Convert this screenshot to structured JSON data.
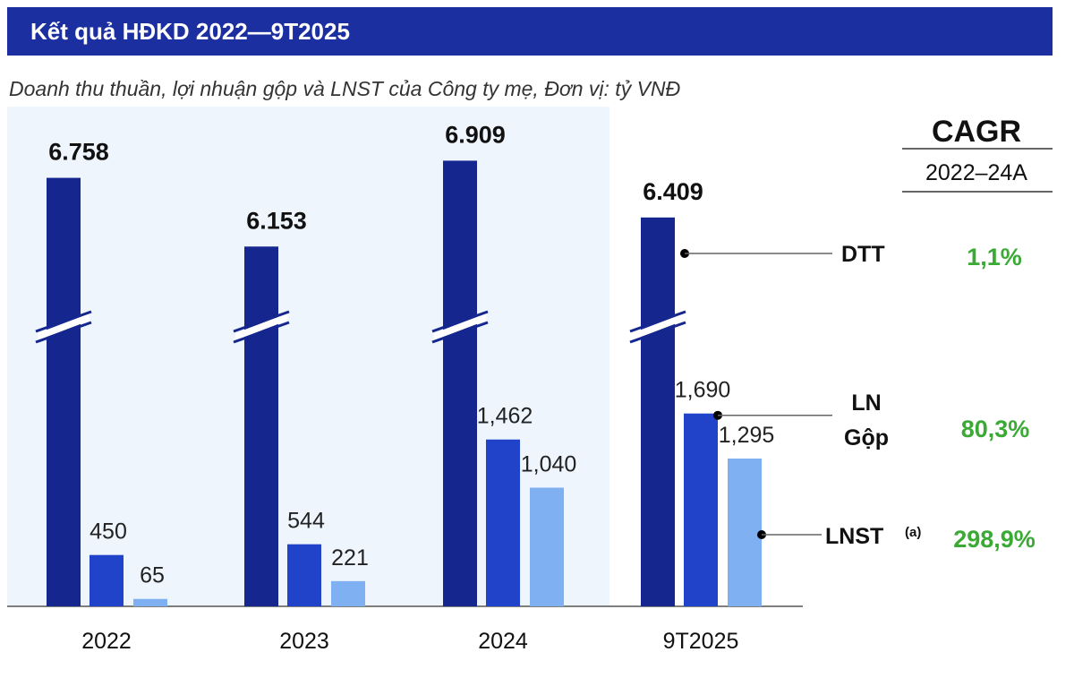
{
  "header": {
    "title": "Kết quả HĐKD 2022—9T2025"
  },
  "subtitle": "Doanh thu thuần, lợi nhuận gộp và LNST của Công ty mẹ, Đơn vị: tỷ VNĐ",
  "colors": {
    "banner": "#1b2fa0",
    "dtt": "#15278f",
    "ln_gop": "#2143c9",
    "lnst": "#7fb0f2",
    "highlight_bg": "#eef5fd",
    "cagr_green": "#3aaa35"
  },
  "chart_data": {
    "type": "bar",
    "title": "Kết quả HĐKD 2022—9T2025",
    "subtitle": "Doanh thu thuần, lợi nhuận gộp và LNST của Công ty mẹ, Đơn vị: tỷ VNĐ",
    "categories": [
      "2022",
      "2023",
      "2024",
      "9T2025"
    ],
    "axis_break": true,
    "series": [
      {
        "key": "dtt",
        "name": "DTT",
        "values": [
          6758,
          6153,
          6909,
          6409
        ],
        "labels": [
          "6.758",
          "6.153",
          "6.909",
          "6.409"
        ]
      },
      {
        "key": "ln_gop",
        "name": "LN Gộp",
        "name_lines": [
          "LN",
          "Gộp"
        ],
        "values": [
          450,
          544,
          1462,
          1690
        ],
        "labels": [
          "450",
          "544",
          "1,462",
          "1,690"
        ]
      },
      {
        "key": "lnst",
        "name": "LNST",
        "superscript": "(a)",
        "values": [
          65,
          221,
          1040,
          1295
        ],
        "labels": [
          "65",
          "221",
          "1,040",
          "1,295"
        ]
      }
    ],
    "highlighted_categories": [
      "2022",
      "2023",
      "2024"
    ],
    "cagr": {
      "title": "CAGR",
      "period": "2022–24A",
      "values": [
        {
          "series": "DTT",
          "value": "1,1%"
        },
        {
          "series": "LN Gộp",
          "value": "80,3%"
        },
        {
          "series": "LNST",
          "value": "298,9%"
        }
      ]
    }
  }
}
